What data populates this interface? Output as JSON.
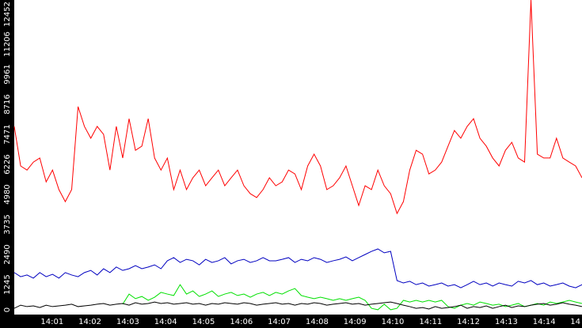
{
  "chart_data": {
    "type": "line",
    "ylim": [
      0,
      13040
    ],
    "yticks": [
      0,
      1245,
      2490,
      3735,
      4980,
      6226,
      7471,
      8716,
      9961,
      11206,
      12452
    ],
    "xtick_labels": [
      "14:01",
      "14:02",
      "14:03",
      "14:04",
      "14:05",
      "14:06",
      "14:07",
      "14:08",
      "14:09",
      "14:10",
      "14:11",
      "14:12",
      "14:13",
      "14:14",
      "14"
    ],
    "series": [
      {
        "color": "#ff0000",
        "values": [
          7800,
          6160,
          5990,
          6320,
          6490,
          5500,
          5990,
          5180,
          4680,
          5180,
          8620,
          7800,
          7310,
          7800,
          7470,
          5990,
          7800,
          6490,
          8120,
          6810,
          6980,
          8120,
          6490,
          5990,
          6490,
          5180,
          5990,
          5180,
          5670,
          5990,
          5340,
          5670,
          5990,
          5340,
          5670,
          5990,
          5340,
          5010,
          4850,
          5180,
          5670,
          5340,
          5500,
          5990,
          5830,
          5180,
          6160,
          6650,
          6160,
          5180,
          5340,
          5670,
          6160,
          5340,
          4520,
          5340,
          5180,
          5990,
          5340,
          5010,
          4190,
          4680,
          5990,
          6810,
          6650,
          5830,
          5990,
          6320,
          6980,
          7630,
          7310,
          7800,
          8120,
          7310,
          6980,
          6490,
          6160,
          6810,
          7140,
          6490,
          6320,
          13040,
          6650,
          6490,
          6490,
          7310,
          6490,
          6320,
          6160,
          5670
        ]
      },
      {
        "color": "#0000c0",
        "values": [
          1740,
          1570,
          1640,
          1510,
          1740,
          1570,
          1670,
          1510,
          1740,
          1640,
          1570,
          1740,
          1830,
          1640,
          1900,
          1740,
          1970,
          1830,
          1900,
          2030,
          1900,
          1970,
          2060,
          1900,
          2230,
          2360,
          2160,
          2290,
          2230,
          2060,
          2290,
          2160,
          2230,
          2360,
          2100,
          2230,
          2290,
          2160,
          2230,
          2360,
          2230,
          2230,
          2290,
          2360,
          2160,
          2290,
          2230,
          2360,
          2290,
          2160,
          2230,
          2290,
          2390,
          2230,
          2360,
          2490,
          2620,
          2720,
          2560,
          2620,
          1410,
          1310,
          1380,
          1240,
          1310,
          1180,
          1240,
          1310,
          1180,
          1240,
          1110,
          1240,
          1380,
          1240,
          1310,
          1180,
          1310,
          1240,
          1180,
          1380,
          1310,
          1410,
          1240,
          1310,
          1180,
          1240,
          1310,
          1180,
          1110,
          1240
        ]
      },
      {
        "color": "#00e000",
        "values": [
          null,
          null,
          null,
          null,
          null,
          null,
          null,
          null,
          null,
          null,
          null,
          null,
          null,
          null,
          null,
          null,
          null,
          430,
          850,
          660,
          750,
          590,
          720,
          920,
          850,
          790,
          1240,
          850,
          980,
          750,
          850,
          980,
          750,
          850,
          920,
          790,
          850,
          720,
          850,
          920,
          790,
          920,
          850,
          980,
          1080,
          790,
          720,
          660,
          720,
          660,
          590,
          660,
          590,
          660,
          720,
          590,
          260,
          200,
          430,
          200,
          260,
          590,
          520,
          590,
          520,
          590,
          520,
          590,
          330,
          260,
          390,
          460,
          390,
          520,
          460,
          390,
          430,
          330,
          390,
          460,
          330,
          390,
          460,
          390,
          520,
          460,
          520,
          590,
          520,
          460
        ]
      },
      {
        "color": "#000000",
        "values": [
          260,
          390,
          330,
          360,
          290,
          390,
          330,
          360,
          390,
          430,
          330,
          360,
          390,
          430,
          460,
          390,
          430,
          460,
          390,
          490,
          430,
          460,
          520,
          460,
          490,
          430,
          460,
          490,
          430,
          460,
          390,
          460,
          430,
          490,
          460,
          430,
          490,
          460,
          390,
          430,
          460,
          490,
          430,
          460,
          390,
          460,
          430,
          490,
          460,
          390,
          430,
          460,
          490,
          430,
          460,
          390,
          430,
          460,
          490,
          520,
          460,
          390,
          330,
          260,
          290,
          230,
          330,
          260,
          290,
          330,
          390,
          260,
          330,
          290,
          360,
          260,
          330,
          390,
          290,
          360,
          330,
          390,
          430,
          460,
          390,
          430,
          490,
          430,
          390,
          330
        ]
      }
    ]
  }
}
